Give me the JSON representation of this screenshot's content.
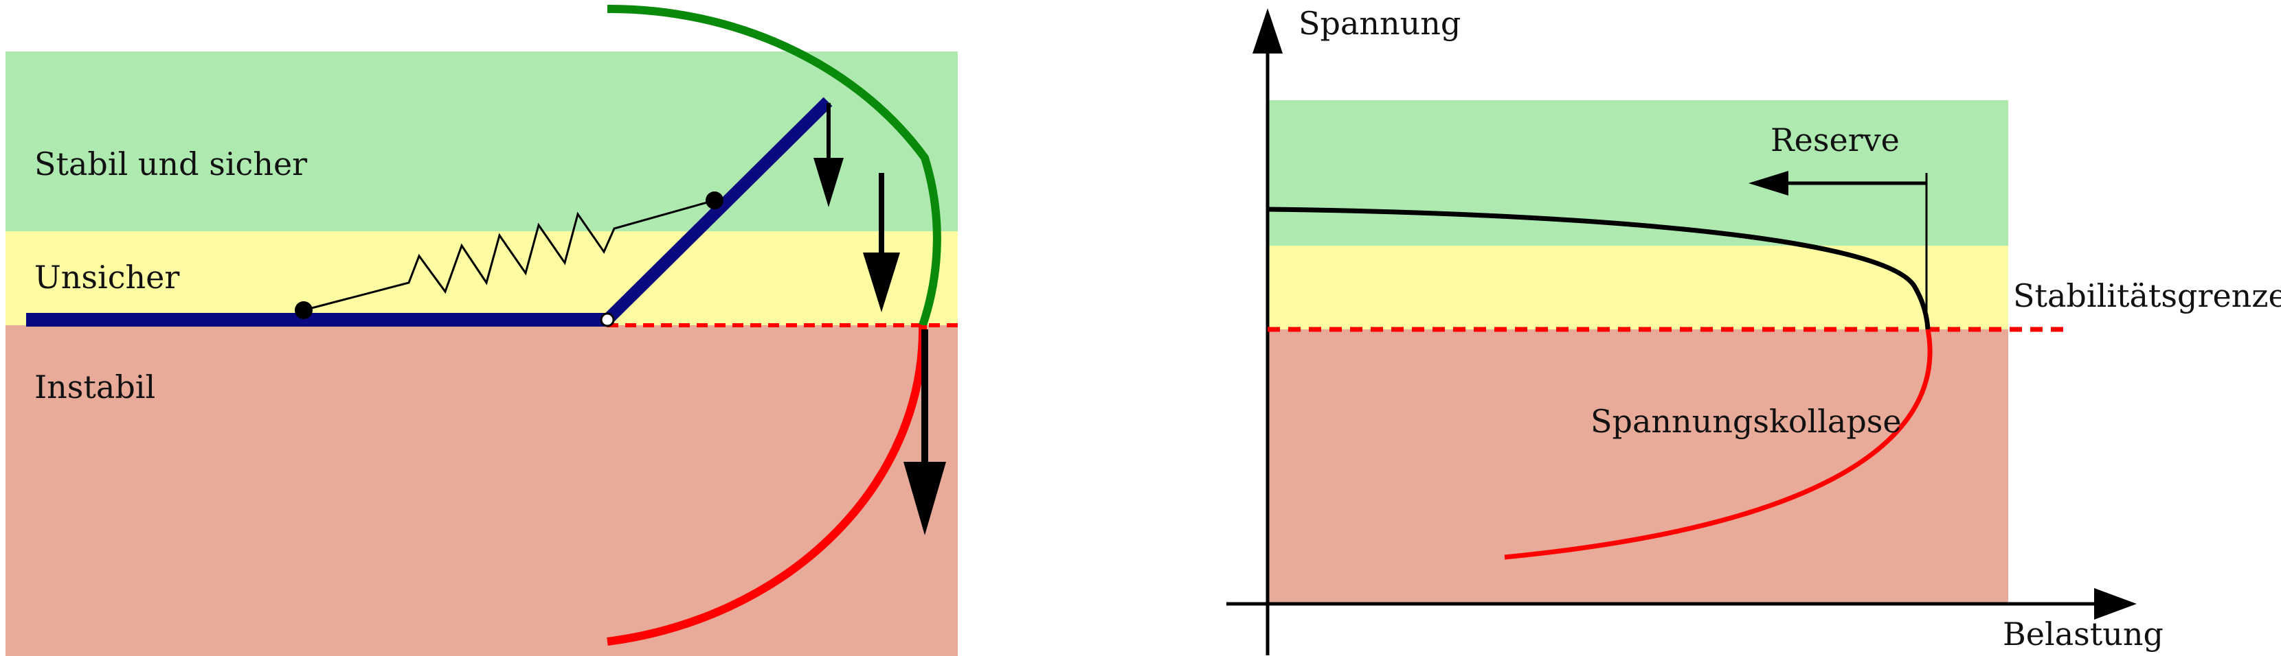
{
  "left_panel": {
    "zones": {
      "stable_label": "Stabil und sicher",
      "unsafe_label": "Unsicher",
      "unstable_label": "Instabil"
    }
  },
  "right_panel": {
    "y_axis_label": "Spannung",
    "x_axis_label": "Belastung",
    "reserve_label": "Reserve",
    "limit_label": "Stabilitätsgrenze",
    "collapse_label": "Spannungskollapse"
  },
  "colors": {
    "stable_zone": "#aeeab0",
    "unsafe_zone": "#fdfca2",
    "unstable_zone": "#e8ab99",
    "stability_limit": "#ff0000",
    "stable_arc": "#0a8a0a",
    "unstable_arc": "#ff0000",
    "beam": "#0a0a80"
  }
}
